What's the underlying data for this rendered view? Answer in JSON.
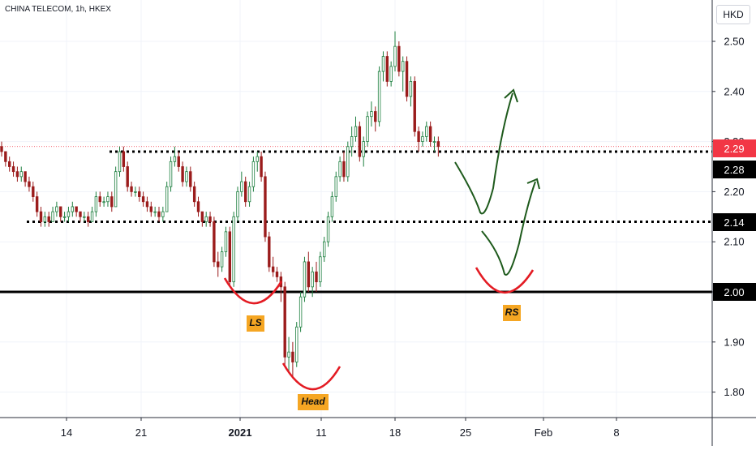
{
  "header": {
    "symbol_line": "CHINA TELECOM, 1h, HKEX",
    "currency": "HKD"
  },
  "chart_data": {
    "type": "candlestick",
    "symbol": "CHINA TELECOM",
    "interval": "1h",
    "exchange": "HKEX",
    "currency": "HKD",
    "ylim": [
      1.76,
      2.55
    ],
    "y_ticks": [
      1.8,
      1.9,
      2.0,
      2.1,
      2.2,
      2.3,
      2.4,
      2.5
    ],
    "y_tick_labels": [
      "1.80",
      "1.90",
      "2.00",
      "2.10",
      "2.20",
      "2.30",
      "2.40",
      "2.50"
    ],
    "x_tick_labels": [
      "14",
      "21",
      "2021",
      "11",
      "18",
      "25",
      "Feb",
      "8"
    ],
    "price_tags": [
      {
        "label": "2.29",
        "value": 2.29,
        "color": "#f23645",
        "text_color": "#ffffff"
      },
      {
        "label": "2.28",
        "value": 2.28,
        "color": "#000000",
        "text_color": "#ffffff"
      },
      {
        "label": "2.14",
        "value": 2.14,
        "color": "#000000",
        "text_color": "#ffffff"
      },
      {
        "label": "2.00",
        "value": 2.0,
        "color": "#000000",
        "text_color": "#ffffff"
      }
    ],
    "last_price": 2.29,
    "horizontal_levels": [
      {
        "value": 2.28,
        "style": "dotted"
      },
      {
        "value": 2.14,
        "style": "dotted"
      },
      {
        "value": 2.0,
        "style": "solid"
      }
    ],
    "annotations": [
      {
        "label": "LS",
        "meaning": "left shoulder"
      },
      {
        "label": "Head",
        "meaning": "head"
      },
      {
        "label": "RS",
        "meaning": "right shoulder"
      }
    ],
    "candles": [
      [
        2.29,
        2.3,
        2.27,
        2.28
      ],
      [
        2.28,
        2.28,
        2.25,
        2.26
      ],
      [
        2.26,
        2.27,
        2.24,
        2.25
      ],
      [
        2.25,
        2.26,
        2.23,
        2.24
      ],
      [
        2.24,
        2.25,
        2.22,
        2.23
      ],
      [
        2.23,
        2.25,
        2.22,
        2.24
      ],
      [
        2.24,
        2.24,
        2.21,
        2.22
      ],
      [
        2.22,
        2.23,
        2.2,
        2.21
      ],
      [
        2.21,
        2.22,
        2.18,
        2.19
      ],
      [
        2.19,
        2.2,
        2.15,
        2.16
      ],
      [
        2.16,
        2.17,
        2.13,
        2.14
      ],
      [
        2.14,
        2.16,
        2.13,
        2.15
      ],
      [
        2.15,
        2.16,
        2.13,
        2.14
      ],
      [
        2.14,
        2.17,
        2.14,
        2.16
      ],
      [
        2.16,
        2.18,
        2.15,
        2.17
      ],
      [
        2.17,
        2.17,
        2.14,
        2.15
      ],
      [
        2.15,
        2.16,
        2.14,
        2.15
      ],
      [
        2.15,
        2.17,
        2.14,
        2.16
      ],
      [
        2.16,
        2.18,
        2.15,
        2.17
      ],
      [
        2.17,
        2.17,
        2.15,
        2.16
      ],
      [
        2.16,
        2.16,
        2.14,
        2.15
      ],
      [
        2.15,
        2.16,
        2.14,
        2.15
      ],
      [
        2.15,
        2.16,
        2.13,
        2.14
      ],
      [
        2.14,
        2.17,
        2.14,
        2.16
      ],
      [
        2.16,
        2.2,
        2.15,
        2.19
      ],
      [
        2.19,
        2.2,
        2.17,
        2.18
      ],
      [
        2.18,
        2.19,
        2.17,
        2.18
      ],
      [
        2.18,
        2.2,
        2.17,
        2.19
      ],
      [
        2.19,
        2.2,
        2.16,
        2.17
      ],
      [
        2.17,
        2.25,
        2.17,
        2.24
      ],
      [
        2.24,
        2.29,
        2.23,
        2.28
      ],
      [
        2.28,
        2.29,
        2.24,
        2.25
      ],
      [
        2.25,
        2.26,
        2.2,
        2.21
      ],
      [
        2.21,
        2.22,
        2.19,
        2.2
      ],
      [
        2.2,
        2.21,
        2.19,
        2.2
      ],
      [
        2.2,
        2.21,
        2.18,
        2.19
      ],
      [
        2.19,
        2.2,
        2.17,
        2.18
      ],
      [
        2.18,
        2.19,
        2.16,
        2.17
      ],
      [
        2.17,
        2.18,
        2.15,
        2.16
      ],
      [
        2.16,
        2.17,
        2.15,
        2.16
      ],
      [
        2.16,
        2.17,
        2.14,
        2.15
      ],
      [
        2.15,
        2.17,
        2.14,
        2.16
      ],
      [
        2.16,
        2.22,
        2.16,
        2.21
      ],
      [
        2.21,
        2.27,
        2.2,
        2.26
      ],
      [
        2.26,
        2.29,
        2.25,
        2.27
      ],
      [
        2.27,
        2.28,
        2.24,
        2.25
      ],
      [
        2.25,
        2.26,
        2.21,
        2.22
      ],
      [
        2.22,
        2.25,
        2.21,
        2.24
      ],
      [
        2.24,
        2.25,
        2.2,
        2.21
      ],
      [
        2.21,
        2.22,
        2.17,
        2.18
      ],
      [
        2.18,
        2.19,
        2.15,
        2.16
      ],
      [
        2.16,
        2.16,
        2.13,
        2.14
      ],
      [
        2.14,
        2.16,
        2.13,
        2.15
      ],
      [
        2.15,
        2.16,
        2.13,
        2.14
      ],
      [
        2.14,
        2.15,
        2.05,
        2.06
      ],
      [
        2.06,
        2.08,
        2.03,
        2.05
      ],
      [
        2.05,
        2.09,
        2.04,
        2.08
      ],
      [
        2.08,
        2.13,
        2.07,
        2.12
      ],
      [
        2.12,
        2.13,
        2.01,
        2.02
      ],
      [
        2.02,
        2.16,
        2.01,
        2.15
      ],
      [
        2.15,
        2.21,
        2.14,
        2.2
      ],
      [
        2.2,
        2.24,
        2.19,
        2.22
      ],
      [
        2.22,
        2.23,
        2.17,
        2.18
      ],
      [
        2.18,
        2.22,
        2.17,
        2.21
      ],
      [
        2.21,
        2.27,
        2.2,
        2.26
      ],
      [
        2.26,
        2.28,
        2.24,
        2.27
      ],
      [
        2.27,
        2.28,
        2.22,
        2.23
      ],
      [
        2.23,
        2.24,
        2.1,
        2.11
      ],
      [
        2.11,
        2.12,
        2.04,
        2.05
      ],
      [
        2.05,
        2.07,
        2.03,
        2.04
      ],
      [
        2.04,
        2.05,
        2.02,
        2.03
      ],
      [
        2.03,
        2.04,
        1.98,
        2.01
      ],
      [
        2.01,
        2.02,
        1.85,
        1.87
      ],
      [
        1.87,
        1.91,
        1.84,
        1.88
      ],
      [
        1.88,
        1.9,
        1.83,
        1.86
      ],
      [
        1.86,
        1.94,
        1.85,
        1.93
      ],
      [
        1.93,
        2.0,
        1.92,
        1.99
      ],
      [
        1.99,
        2.07,
        1.98,
        2.06
      ],
      [
        2.06,
        2.08,
        2.0,
        2.01
      ],
      [
        2.01,
        2.05,
        1.99,
        2.04
      ],
      [
        2.04,
        2.06,
        2.0,
        2.02
      ],
      [
        2.02,
        2.08,
        2.01,
        2.07
      ],
      [
        2.07,
        2.11,
        2.06,
        2.1
      ],
      [
        2.1,
        2.16,
        2.09,
        2.15
      ],
      [
        2.15,
        2.2,
        2.14,
        2.19
      ],
      [
        2.19,
        2.24,
        2.18,
        2.23
      ],
      [
        2.23,
        2.27,
        2.22,
        2.26
      ],
      [
        2.26,
        2.28,
        2.22,
        2.23
      ],
      [
        2.23,
        2.3,
        2.22,
        2.29
      ],
      [
        2.29,
        2.33,
        2.27,
        2.31
      ],
      [
        2.31,
        2.35,
        2.3,
        2.33
      ],
      [
        2.33,
        2.34,
        2.26,
        2.27
      ],
      [
        2.27,
        2.31,
        2.25,
        2.3
      ],
      [
        2.3,
        2.36,
        2.29,
        2.35
      ],
      [
        2.35,
        2.38,
        2.33,
        2.36
      ],
      [
        2.36,
        2.37,
        2.32,
        2.34
      ],
      [
        2.34,
        2.45,
        2.33,
        2.44
      ],
      [
        2.44,
        2.48,
        2.42,
        2.47
      ],
      [
        2.47,
        2.48,
        2.41,
        2.42
      ],
      [
        2.42,
        2.46,
        2.41,
        2.45
      ],
      [
        2.45,
        2.52,
        2.44,
        2.49
      ],
      [
        2.49,
        2.5,
        2.43,
        2.44
      ],
      [
        2.44,
        2.47,
        2.4,
        2.46
      ],
      [
        2.46,
        2.47,
        2.38,
        2.39
      ],
      [
        2.39,
        2.43,
        2.37,
        2.42
      ],
      [
        2.42,
        2.43,
        2.31,
        2.32
      ],
      [
        2.32,
        2.33,
        2.28,
        2.3
      ],
      [
        2.3,
        2.32,
        2.29,
        2.31
      ],
      [
        2.31,
        2.34,
        2.3,
        2.33
      ],
      [
        2.33,
        2.34,
        2.29,
        2.3
      ],
      [
        2.3,
        2.31,
        2.28,
        2.3
      ],
      [
        2.3,
        2.31,
        2.27,
        2.29
      ]
    ]
  }
}
